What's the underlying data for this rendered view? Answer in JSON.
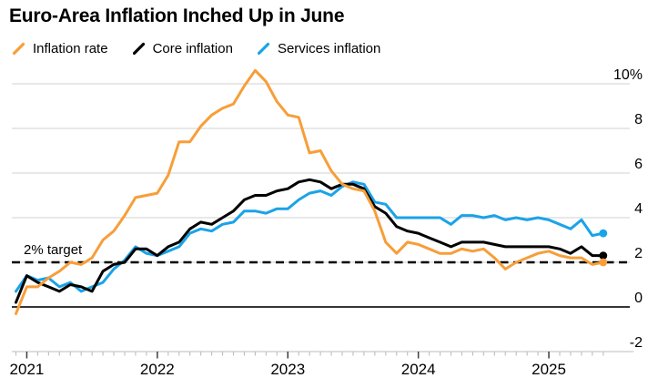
{
  "header": {
    "title": "Euro-Area Inflation Inched Up in June"
  },
  "legend": [
    {
      "label": "Inflation rate",
      "color": "#F79E39"
    },
    {
      "label": "Core inflation",
      "color": "#000000"
    },
    {
      "label": "Services inflation",
      "color": "#1AA3E8"
    }
  ],
  "chart_data": {
    "type": "line",
    "title": "Euro-Area Inflation Inched Up in June",
    "x_unit": "month",
    "x": [
      "2020-12",
      "2021-01",
      "2021-02",
      "2021-03",
      "2021-04",
      "2021-05",
      "2021-06",
      "2021-07",
      "2021-08",
      "2021-09",
      "2021-10",
      "2021-11",
      "2021-12",
      "2022-01",
      "2022-02",
      "2022-03",
      "2022-04",
      "2022-05",
      "2022-06",
      "2022-07",
      "2022-08",
      "2022-09",
      "2022-10",
      "2022-11",
      "2022-12",
      "2023-01",
      "2023-02",
      "2023-03",
      "2023-04",
      "2023-05",
      "2023-06",
      "2023-07",
      "2023-08",
      "2023-09",
      "2023-10",
      "2023-11",
      "2023-12",
      "2024-01",
      "2024-02",
      "2024-03",
      "2024-04",
      "2024-05",
      "2024-06",
      "2024-07",
      "2024-08",
      "2024-09",
      "2024-10",
      "2024-11",
      "2024-12",
      "2025-01",
      "2025-02",
      "2025-03",
      "2025-04",
      "2025-05",
      "2025-06"
    ],
    "x_tick_labels": [
      "2021",
      "2022",
      "2023",
      "2024",
      "2025"
    ],
    "y_ticks": [
      10,
      8,
      6,
      4,
      2,
      0,
      -2
    ],
    "y_tick_labels": [
      "10%",
      "8",
      "6",
      "4",
      "2",
      "0",
      "-2"
    ],
    "ylim": [
      -2,
      10
    ],
    "grid": "horizontal",
    "legend_position": "top",
    "target_line": {
      "value": 2,
      "label": "2% target",
      "style": "dashed",
      "color": "#000000"
    },
    "series": [
      {
        "name": "Inflation rate",
        "color": "#F79E39",
        "values": [
          -0.3,
          0.9,
          0.9,
          1.3,
          1.6,
          2.0,
          1.9,
          2.2,
          3.0,
          3.4,
          4.1,
          4.9,
          5.0,
          5.1,
          5.9,
          7.4,
          7.4,
          8.1,
          8.6,
          8.9,
          9.1,
          9.9,
          10.6,
          10.1,
          9.2,
          8.6,
          8.5,
          6.9,
          7.0,
          6.1,
          5.5,
          5.3,
          5.2,
          4.3,
          2.9,
          2.4,
          2.9,
          2.8,
          2.6,
          2.4,
          2.4,
          2.6,
          2.5,
          2.6,
          2.2,
          1.7,
          2.0,
          2.2,
          2.4,
          2.5,
          2.3,
          2.2,
          2.2,
          1.9,
          2.0
        ]
      },
      {
        "name": "Core inflation",
        "color": "#000000",
        "values": [
          0.2,
          1.4,
          1.1,
          0.9,
          0.7,
          1.0,
          0.9,
          0.7,
          1.6,
          1.9,
          2.0,
          2.6,
          2.6,
          2.3,
          2.7,
          2.9,
          3.5,
          3.8,
          3.7,
          4.0,
          4.3,
          4.8,
          5.0,
          5.0,
          5.2,
          5.3,
          5.6,
          5.7,
          5.6,
          5.3,
          5.5,
          5.5,
          5.3,
          4.5,
          4.2,
          3.6,
          3.4,
          3.3,
          3.1,
          2.9,
          2.7,
          2.9,
          2.9,
          2.9,
          2.8,
          2.7,
          2.7,
          2.7,
          2.7,
          2.7,
          2.6,
          2.4,
          2.7,
          2.3,
          2.3
        ]
      },
      {
        "name": "Services inflation",
        "color": "#1AA3E8",
        "values": [
          0.7,
          1.4,
          1.2,
          1.3,
          0.9,
          1.1,
          0.7,
          0.9,
          1.1,
          1.7,
          2.1,
          2.7,
          2.4,
          2.3,
          2.5,
          2.7,
          3.3,
          3.5,
          3.4,
          3.7,
          3.8,
          4.3,
          4.3,
          4.2,
          4.4,
          4.4,
          4.8,
          5.1,
          5.2,
          5.0,
          5.4,
          5.6,
          5.5,
          4.7,
          4.6,
          4.0,
          4.0,
          4.0,
          4.0,
          4.0,
          3.7,
          4.1,
          4.1,
          4.0,
          4.1,
          3.9,
          4.0,
          3.9,
          4.0,
          3.9,
          3.7,
          3.5,
          3.9,
          3.2,
          3.3
        ]
      }
    ],
    "end_dots": true,
    "colors": {
      "grid": "#DBDBDB",
      "zero_line": "#1A1A1A",
      "axis": "#C9C9C9"
    }
  }
}
